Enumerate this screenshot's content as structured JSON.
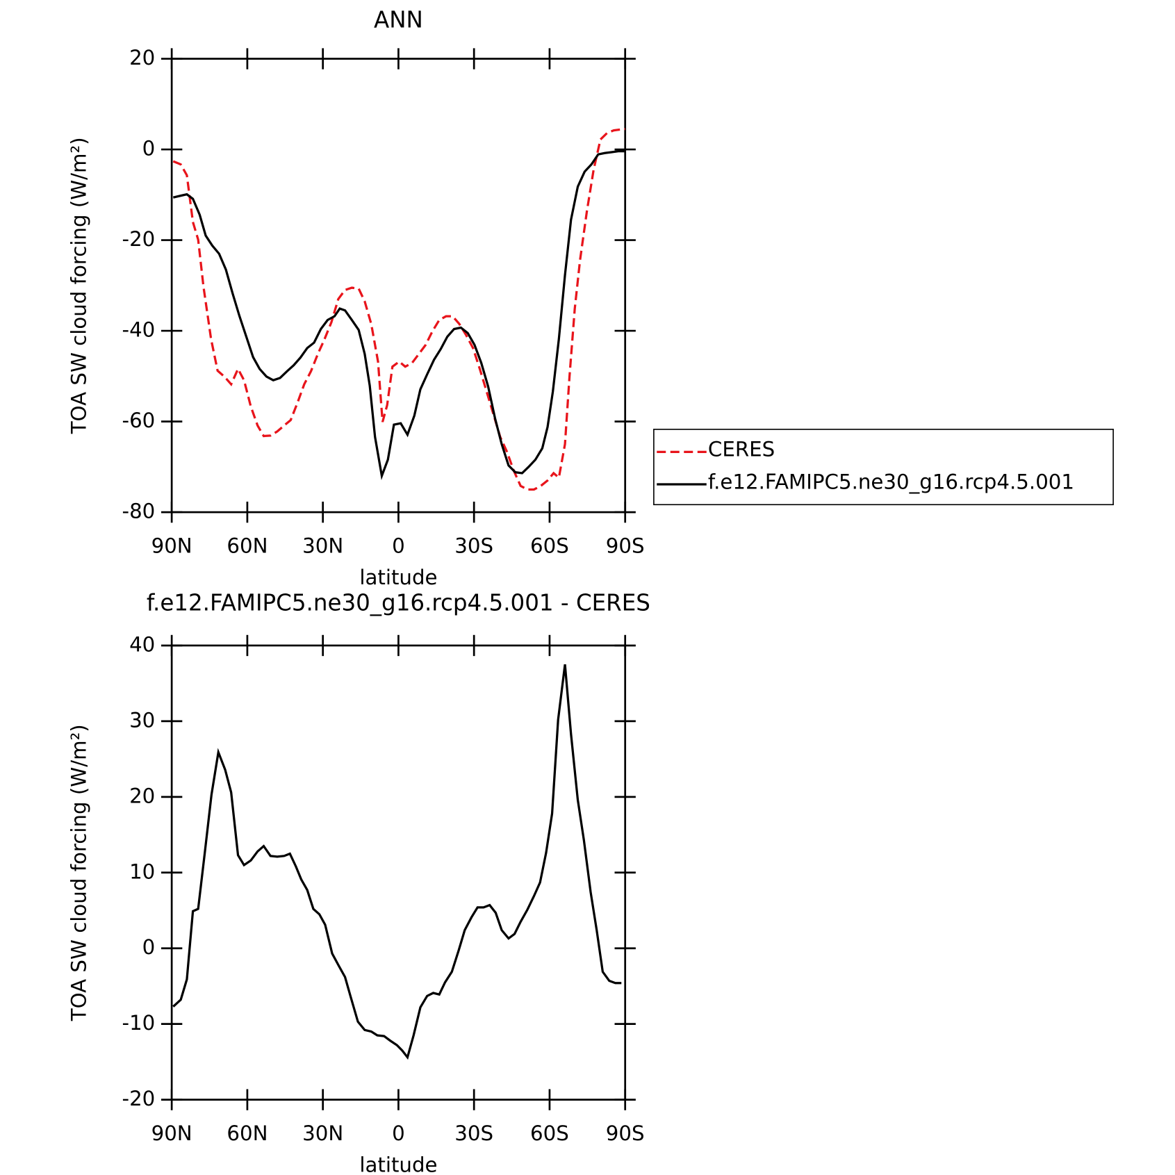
{
  "chart_data": [
    {
      "type": "line",
      "title": "ANN",
      "xlabel": "latitude",
      "ylabel": "TOA SW cloud forcing (W/m²)",
      "xlim": [
        90,
        -90
      ],
      "xticks": [
        {
          "value": 90,
          "label": "90N"
        },
        {
          "value": 60,
          "label": "60N"
        },
        {
          "value": 30,
          "label": "30N"
        },
        0,
        {
          "value": -30,
          "label": "30S"
        },
        {
          "value": -60,
          "label": "60S"
        },
        {
          "value": -90,
          "label": "90S"
        }
      ],
      "ylim": [
        -80,
        20
      ],
      "yticks": [
        -80,
        -60,
        -40,
        -20,
        0,
        20
      ],
      "legend": "right",
      "series": [
        {
          "name": "CERES",
          "color": "#e8141b",
          "dashed": true,
          "x": [
            89.4,
            86.4,
            84,
            81.6,
            79.5,
            77.4,
            74.4,
            71.8,
            69.1,
            66.4,
            63.7,
            61.3,
            58.6,
            55.9,
            53.5,
            50.8,
            48.1,
            45.4,
            42.8,
            40.1,
            37.4,
            34.7,
            32.0,
            29.3,
            26.6,
            23.9,
            21.2,
            18.5,
            15.8,
            13.4,
            10.8,
            8.1,
            6.3,
            4.5,
            2.4,
            -0.3,
            -2.7,
            -5.4,
            -8.1,
            -10.8,
            -13.5,
            -16.2,
            -18.9,
            -21.5,
            -24.2,
            -26.9,
            -29.6,
            -32.3,
            -35.0,
            -37.7,
            -40.4,
            -43.1,
            -45.8,
            -48.5,
            -51.2,
            -53.8,
            -56.5,
            -59.2,
            -61.6,
            -63.7,
            -66.1,
            -67.9,
            -70.0,
            -72.1,
            -74.8,
            -77.5,
            -80.2,
            -82.8,
            -85.5,
            -88.2,
            -90
          ],
          "values": [
            -2.6,
            -3.3,
            -5.7,
            -16,
            -19.9,
            -30.2,
            -41.8,
            -48.8,
            -50.1,
            -51.8,
            -48.4,
            -50.9,
            -56.7,
            -60.9,
            -63.2,
            -63.1,
            -62.2,
            -60.9,
            -59.7,
            -55.9,
            -51.8,
            -48.9,
            -45.1,
            -41.8,
            -38.1,
            -33.0,
            -31.0,
            -30.5,
            -30.7,
            -33.5,
            -38.5,
            -46.8,
            -60.1,
            -56.4,
            -47.9,
            -46.8,
            -47.9,
            -47.1,
            -45.1,
            -43.1,
            -40.1,
            -37.6,
            -36.8,
            -36.8,
            -38.5,
            -41.0,
            -43.8,
            -48.4,
            -53.4,
            -58.4,
            -63.4,
            -66.7,
            -70.9,
            -74.2,
            -75.0,
            -75.0,
            -74.2,
            -73.0,
            -71.4,
            -72.4,
            -65.0,
            -50.1,
            -35.1,
            -24.4,
            -13.6,
            -4.4,
            2.2,
            3.6,
            4.2,
            4.4,
            4.5
          ]
        },
        {
          "name": "f.e12.FAMIPC5.ne30_g16.rcp4.5.001",
          "color": "#000000",
          "dashed": false,
          "x": [
            89.4,
            86.4,
            84,
            81.6,
            78.9,
            76.5,
            73.9,
            71.2,
            68.5,
            65.8,
            63.1,
            60.4,
            57.7,
            55.1,
            52.4,
            49.7,
            47.0,
            44.2,
            41.6,
            38.9,
            36.2,
            33.5,
            30.8,
            28.1,
            25.4,
            23.3,
            21.2,
            18.5,
            15.8,
            13.4,
            11.4,
            9.3,
            6.6,
            4.2,
            1.8,
            -0.9,
            -3.6,
            -6.3,
            -8.7,
            -11.4,
            -14.1,
            -16.8,
            -19.4,
            -22.1,
            -24.8,
            -27.5,
            -30.2,
            -32.9,
            -35.6,
            -38.3,
            -41.0,
            -43.7,
            -46.4,
            -49.1,
            -51.7,
            -54.4,
            -57.1,
            -59.2,
            -61.3,
            -63.7,
            -66.1,
            -68.5,
            -71.2,
            -73.9,
            -76.6,
            -79.3,
            -81.9,
            -84.6,
            -87.3,
            -90
          ],
          "values": [
            -10.6,
            -10.2,
            -9.9,
            -10.9,
            -14.4,
            -19.0,
            -21.2,
            -23.0,
            -26.5,
            -31.8,
            -36.8,
            -41.3,
            -45.8,
            -48.4,
            -50.1,
            -50.9,
            -50.4,
            -48.9,
            -47.6,
            -45.9,
            -43.8,
            -42.6,
            -39.6,
            -37.6,
            -36.8,
            -35.1,
            -35.5,
            -37.6,
            -39.8,
            -45.1,
            -52.1,
            -63.4,
            -72.0,
            -68.4,
            -60.7,
            -60.4,
            -62.9,
            -58.7,
            -52.9,
            -49.6,
            -46.4,
            -44.0,
            -41.3,
            -39.6,
            -39.3,
            -40.5,
            -43.1,
            -47.1,
            -52.3,
            -59.2,
            -65.0,
            -69.7,
            -71.2,
            -71.4,
            -70.0,
            -68.4,
            -65.9,
            -61.2,
            -53.4,
            -41.8,
            -27.7,
            -15.5,
            -8.2,
            -4.9,
            -3.3,
            -1.1,
            -0.8,
            -0.6,
            -0.4,
            -0.4
          ]
        }
      ]
    },
    {
      "type": "line",
      "title": "f.e12.FAMIPC5.ne30_g16.rcp4.5.001 - CERES",
      "xlabel": "latitude",
      "ylabel": "TOA SW cloud forcing (W/m²)",
      "xlim": [
        90,
        -90
      ],
      "xticks": [
        {
          "value": 90,
          "label": "90N"
        },
        {
          "value": 60,
          "label": "60N"
        },
        {
          "value": 30,
          "label": "30N"
        },
        0,
        {
          "value": -30,
          "label": "30S"
        },
        {
          "value": -60,
          "label": "60S"
        },
        {
          "value": -90,
          "label": "90S"
        }
      ],
      "ylim": [
        -20,
        40
      ],
      "yticks": [
        -20,
        -10,
        0,
        10,
        20,
        30,
        40
      ],
      "series": [
        {
          "color": "#000000",
          "dashed": false,
          "x": [
            89.4,
            86.4,
            84,
            81.6,
            79.5,
            76.8,
            74.2,
            71.5,
            68.8,
            66.4,
            63.7,
            61.3,
            58.6,
            55.9,
            53.5,
            50.8,
            48.1,
            45.4,
            43.1,
            40.7,
            38.6,
            36.2,
            33.8,
            31.4,
            29.1,
            26.3,
            23.7,
            21.2,
            18.8,
            16.1,
            13.4,
            10.8,
            8.4,
            5.7,
            3.3,
            0.6,
            -1.5,
            -3.6,
            -6.0,
            -8.7,
            -11.4,
            -13.8,
            -16.2,
            -18.5,
            -21.2,
            -23.9,
            -26.3,
            -29.0,
            -31.4,
            -33.8,
            -36.2,
            -38.6,
            -41.0,
            -43.7,
            -46.1,
            -48.5,
            -51.2,
            -53.8,
            -56.2,
            -58.6,
            -61.0,
            -63.4,
            -66.1,
            -68.5,
            -71.2,
            -73.6,
            -76.3,
            -78.7,
            -81.1,
            -83.7,
            -86.1,
            -88.5
          ],
          "values": [
            -7.7,
            -6.8,
            -4.1,
            4.9,
            5.2,
            12.8,
            20.3,
            25.9,
            23.6,
            20.6,
            12.3,
            11.0,
            11.6,
            12.8,
            13.5,
            12.2,
            12.1,
            12.2,
            12.5,
            10.8,
            9.1,
            7.7,
            5.2,
            4.5,
            3.1,
            -0.7,
            -2.3,
            -3.8,
            -6.6,
            -9.7,
            -10.8,
            -11.0,
            -11.5,
            -11.6,
            -12.2,
            -12.8,
            -13.5,
            -14.4,
            -11.5,
            -7.8,
            -6.3,
            -5.9,
            -6.1,
            -4.5,
            -3.1,
            -0.3,
            2.4,
            4.1,
            5.4,
            5.4,
            5.7,
            4.7,
            2.4,
            1.3,
            1.9,
            3.5,
            5.1,
            6.9,
            8.7,
            12.6,
            17.8,
            30.2,
            37.5,
            28.3,
            19.6,
            14.3,
            7.4,
            2.4,
            -3.1,
            -4.3,
            -4.6,
            -4.6
          ]
        }
      ]
    }
  ]
}
